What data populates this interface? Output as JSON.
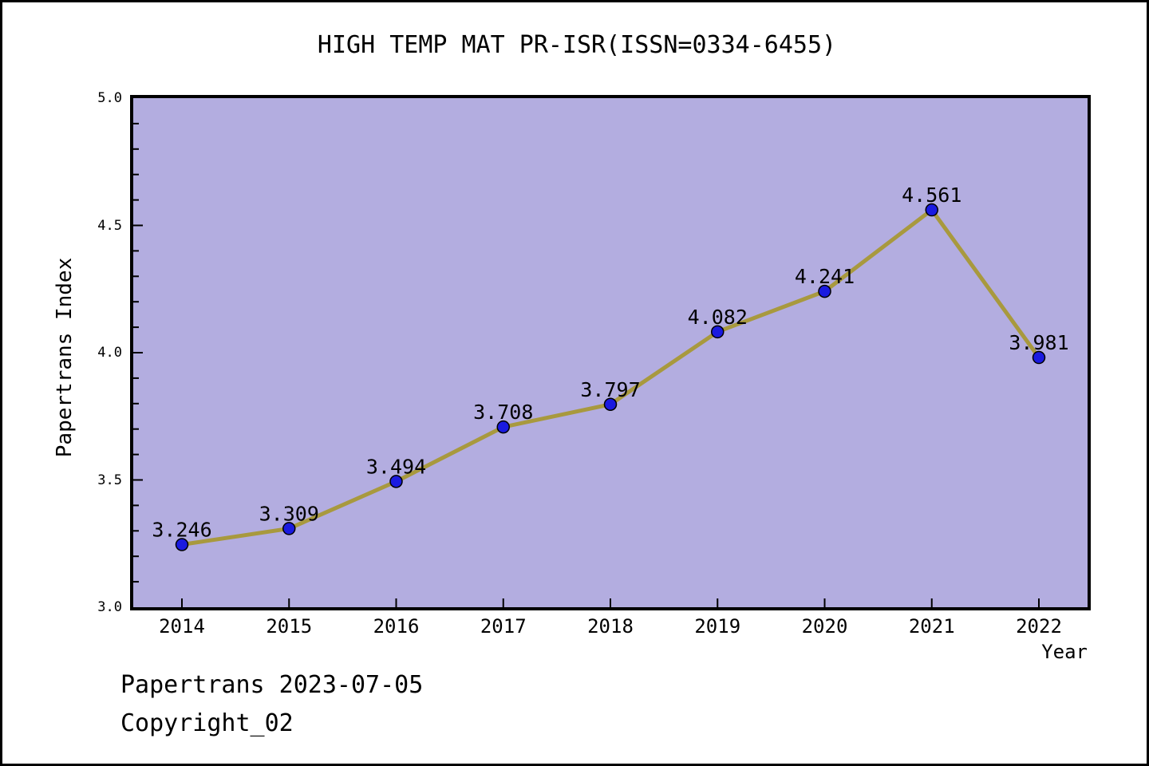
{
  "page": {
    "title": "HIGH TEMP MAT PR-ISR(ISSN=0334-6455)",
    "footer_line1": "Papertrans 2023-07-05",
    "footer_line2": "Copyright_02"
  },
  "chart_data": {
    "type": "line",
    "title": "HIGH TEMP MAT PR-ISR(ISSN=0334-6455)",
    "categories": [
      "2014",
      "2015",
      "2016",
      "2017",
      "2018",
      "2019",
      "2020",
      "2021",
      "2022"
    ],
    "series": [
      {
        "name": "Papertrans Index",
        "values": [
          3.246,
          3.309,
          3.494,
          3.708,
          3.797,
          4.082,
          4.241,
          4.561,
          3.981
        ]
      }
    ],
    "point_labels": [
      "3.246",
      "3.309",
      "3.494",
      "3.708",
      "3.797",
      "4.082",
      "4.241",
      "4.561",
      "3.981"
    ],
    "xlabel": "Year",
    "ylabel": "Papertrans Index",
    "ylim": [
      3.0,
      5.0
    ],
    "ytick_labels": [
      "3.0",
      "3.5",
      "4.0",
      "4.5",
      "5.0"
    ],
    "ytick_minor_step": 0.1,
    "grid": false,
    "legend_position": "none",
    "colors": {
      "plot_bg": "#b3ade0",
      "line": "#a8993e",
      "marker_fill": "#1a1ae0",
      "marker_edge": "#000000",
      "axis": "#000000",
      "text": "#000000",
      "page_bg": "#ffffff"
    }
  }
}
